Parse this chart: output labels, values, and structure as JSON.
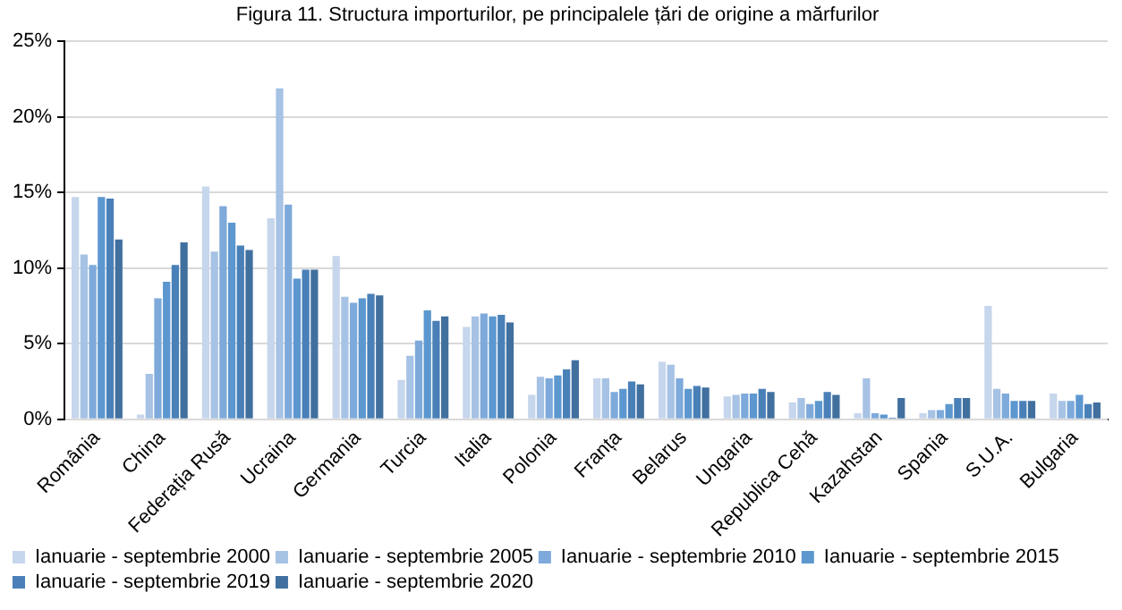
{
  "chart_data": {
    "type": "bar",
    "title": "Figura 11. Structura importurilor, pe principalele țări de origine a mărfurilor",
    "categories": [
      "România",
      "China",
      "Federația Rusă",
      "Ucraina",
      "Germania",
      "Turcia",
      "Italia",
      "Polonia",
      "Franța",
      "Belarus",
      "Ungaria",
      "Republica Cehă",
      "Kazahstan",
      "Spania",
      "S.U.A.",
      "Bulgaria"
    ],
    "series": [
      {
        "name": "Ianuarie - septembrie 2000",
        "color": "#c6d6ec",
        "values": [
          14.7,
          0.3,
          15.4,
          13.3,
          10.8,
          2.6,
          6.1,
          1.6,
          2.7,
          3.8,
          1.5,
          1.1,
          0.4,
          0.4,
          7.5,
          1.7
        ]
      },
      {
        "name": "Ianuarie - septembrie 2005",
        "color": "#a6c2e4",
        "values": [
          10.9,
          3.0,
          11.1,
          21.9,
          8.1,
          4.2,
          6.8,
          2.8,
          2.7,
          3.6,
          1.6,
          1.4,
          2.7,
          0.6,
          2.0,
          1.2
        ]
      },
      {
        "name": "Ianuarie - septembrie 2010",
        "color": "#7eaadb",
        "values": [
          10.2,
          8.0,
          14.1,
          14.2,
          7.7,
          5.2,
          7.0,
          2.7,
          1.8,
          2.7,
          1.7,
          1.0,
          0.4,
          0.6,
          1.7,
          1.2
        ]
      },
      {
        "name": "Ianuarie - septembrie 2015",
        "color": "#5c97cf",
        "values": [
          14.7,
          9.1,
          13.0,
          9.3,
          8.0,
          7.2,
          6.8,
          2.9,
          2.0,
          2.0,
          1.7,
          1.2,
          0.3,
          1.0,
          1.2,
          1.6
        ]
      },
      {
        "name": "Ianuarie - septembrie 2019",
        "color": "#4a80b8",
        "values": [
          14.6,
          10.2,
          11.5,
          9.9,
          8.3,
          6.5,
          6.9,
          3.3,
          2.5,
          2.2,
          2.0,
          1.8,
          0.1,
          1.4,
          1.2,
          1.0
        ]
      },
      {
        "name": "Ianuarie - septembrie 2020",
        "color": "#41709f",
        "values": [
          11.9,
          11.7,
          11.2,
          9.9,
          8.2,
          6.8,
          6.4,
          3.9,
          2.3,
          2.1,
          1.8,
          1.6,
          1.4,
          1.4,
          1.2,
          1.1
        ]
      }
    ],
    "ylim": [
      0,
      25
    ],
    "yticks": [
      {
        "value": 0,
        "label": "0%"
      },
      {
        "value": 5,
        "label": "5%"
      },
      {
        "value": 10,
        "label": "10%"
      },
      {
        "value": 15,
        "label": "15%"
      },
      {
        "value": 20,
        "label": "20%"
      },
      {
        "value": 25,
        "label": "25%"
      }
    ],
    "grid": "y",
    "legend": "bottom"
  }
}
